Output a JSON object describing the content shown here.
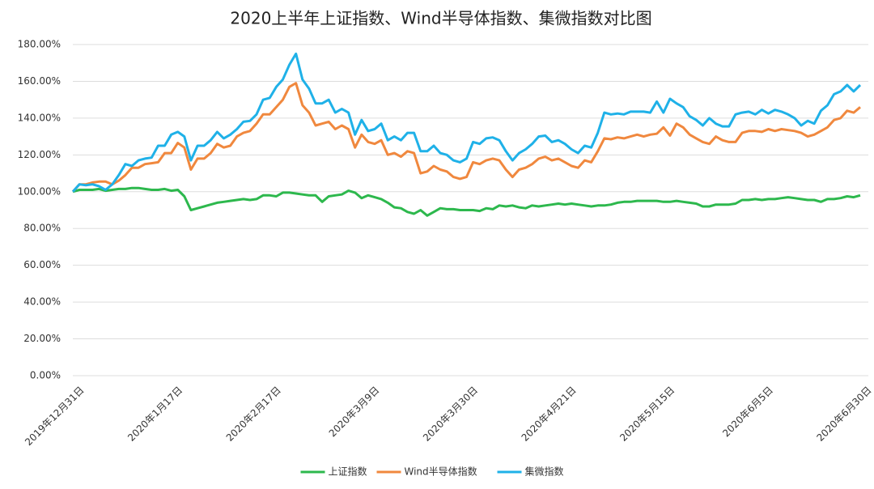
{
  "chart_data": {
    "type": "line",
    "title": "2020上半年上证指数、Wind半导体指数、集微指数对比图",
    "categories": [
      "2019年12月31日",
      null,
      null,
      null,
      null,
      null,
      null,
      null,
      null,
      null,
      null,
      null,
      null,
      null,
      null,
      "2020年1月17日",
      null,
      null,
      null,
      null,
      null,
      null,
      null,
      null,
      null,
      null,
      null,
      null,
      null,
      null,
      "2020年2月17日",
      null,
      null,
      null,
      null,
      null,
      null,
      null,
      null,
      null,
      null,
      null,
      null,
      null,
      null,
      "2020年3月9日",
      null,
      null,
      null,
      null,
      null,
      null,
      null,
      null,
      null,
      null,
      null,
      null,
      null,
      null,
      "2020年3月30日",
      null,
      null,
      null,
      null,
      null,
      null,
      null,
      null,
      null,
      null,
      null,
      null,
      null,
      null,
      "2020年4月21日",
      null,
      null,
      null,
      null,
      null,
      null,
      null,
      null,
      null,
      null,
      null,
      null,
      null,
      null,
      "2020年5月15日",
      null,
      null,
      null,
      null,
      null,
      null,
      null,
      null,
      null,
      null,
      null,
      null,
      null,
      null,
      "2020年6月5日",
      null,
      null,
      null,
      null,
      null,
      null,
      null,
      null,
      null,
      null,
      null,
      null,
      null,
      null,
      "2020年6月30日"
    ],
    "series": [
      {
        "name": "上证指数",
        "color": "#2db84d",
        "values": [
          100,
          101,
          101,
          101,
          101.5,
          100.5,
          101,
          101.5,
          101.5,
          102,
          102,
          101.5,
          101,
          101,
          101.5,
          100.5,
          101,
          97.5,
          90,
          91,
          92,
          93,
          94,
          94.5,
          95,
          95.5,
          96,
          95.5,
          96,
          98,
          98,
          97.5,
          99.5,
          99.5,
          99,
          98.5,
          98,
          98,
          94.5,
          97.5,
          98,
          98.5,
          100.5,
          99.5,
          96.5,
          98,
          97,
          96,
          94,
          91.5,
          91,
          89,
          88,
          90,
          87,
          89,
          91,
          90.5,
          90.5,
          90,
          90,
          90,
          89.5,
          91,
          90.5,
          92.5,
          92,
          92.5,
          91.5,
          91,
          92.5,
          92,
          92.5,
          93,
          93.5,
          93,
          93.5,
          93,
          92.5,
          92,
          92.5,
          92.5,
          93,
          94,
          94.5,
          94.5,
          95,
          95,
          95,
          95,
          94.5,
          94.5,
          95,
          94.5,
          94,
          93.5,
          92,
          92,
          93,
          93,
          93,
          93.5,
          95.5,
          95.5,
          96,
          95.5,
          96,
          96,
          96.5,
          97,
          96.5,
          96,
          95.5,
          95.5,
          94.5,
          96,
          96,
          96.5,
          97.5,
          97,
          98
        ]
      },
      {
        "name": "Wind半导体指数",
        "color": "#f0883e",
        "values": [
          100,
          104,
          104,
          105,
          105.5,
          105.5,
          104,
          106,
          109,
          113,
          113,
          115,
          115.5,
          116,
          121,
          121,
          126.5,
          124,
          112,
          118,
          118,
          121,
          126,
          124,
          125,
          130,
          132,
          133,
          137,
          142,
          142,
          146,
          150,
          157,
          159,
          147,
          143,
          136,
          137,
          138,
          134,
          136,
          134,
          124,
          131,
          127,
          126,
          128,
          120,
          121,
          119,
          122,
          121,
          110,
          111,
          114,
          112,
          111,
          108,
          107,
          108,
          116,
          115,
          117,
          118,
          117,
          112,
          108,
          112,
          113,
          115,
          118,
          119,
          117,
          118,
          116,
          114,
          113,
          117,
          116,
          122,
          129,
          128.5,
          129.5,
          129,
          130,
          131,
          130,
          131,
          131.5,
          135,
          130.5,
          137,
          135,
          131,
          129,
          127,
          126,
          130,
          128,
          127,
          127,
          132,
          133,
          133,
          132.5,
          134,
          133,
          134,
          133.5,
          133,
          132,
          130,
          131,
          133,
          135,
          139,
          140,
          144,
          143,
          146
        ]
      },
      {
        "name": "集微指数",
        "color": "#1fb1e8",
        "values": [
          100,
          104,
          103.5,
          104,
          103,
          101,
          104,
          109,
          115,
          114,
          117,
          118,
          118.5,
          125,
          125,
          131,
          132.5,
          130,
          117,
          125,
          125,
          128,
          132.5,
          129,
          131,
          134,
          138,
          138.5,
          142,
          150,
          151,
          157,
          161,
          169,
          175,
          161,
          156,
          148,
          148,
          150,
          143,
          145,
          143,
          131,
          139,
          133,
          134,
          137,
          128,
          130,
          128,
          132,
          132,
          122,
          122,
          125,
          121,
          120,
          117,
          116,
          118,
          127,
          126,
          129,
          129.5,
          128,
          122,
          117,
          121,
          123,
          126,
          130,
          130.5,
          127,
          128,
          126,
          123,
          121,
          125,
          124,
          132,
          143,
          142,
          142.5,
          142,
          143.5,
          143.5,
          143.5,
          143,
          149,
          143,
          150.5,
          148,
          146,
          141,
          139,
          136,
          140,
          137,
          135.5,
          135.5,
          142,
          143,
          143.5,
          142,
          144.5,
          142.5,
          144.5,
          143.5,
          142,
          140,
          136,
          138.5,
          137,
          144,
          147,
          153,
          154.5,
          158,
          154.5,
          158
        ]
      }
    ],
    "ylim": [
      0,
      180
    ],
    "yticks": [
      {
        "value": 0,
        "label": "0.00%"
      },
      {
        "value": 20,
        "label": "20.00%"
      },
      {
        "value": 40,
        "label": "40.00%"
      },
      {
        "value": 60,
        "label": "60.00%"
      },
      {
        "value": 80,
        "label": "80.00%"
      },
      {
        "value": 100,
        "label": "100.00%"
      },
      {
        "value": 120,
        "label": "120.00%"
      },
      {
        "value": 140,
        "label": "140.00%"
      },
      {
        "value": 160,
        "label": "160.00%"
      },
      {
        "value": 180,
        "label": "180.00%"
      }
    ],
    "grid": true,
    "legend": "bottom"
  }
}
